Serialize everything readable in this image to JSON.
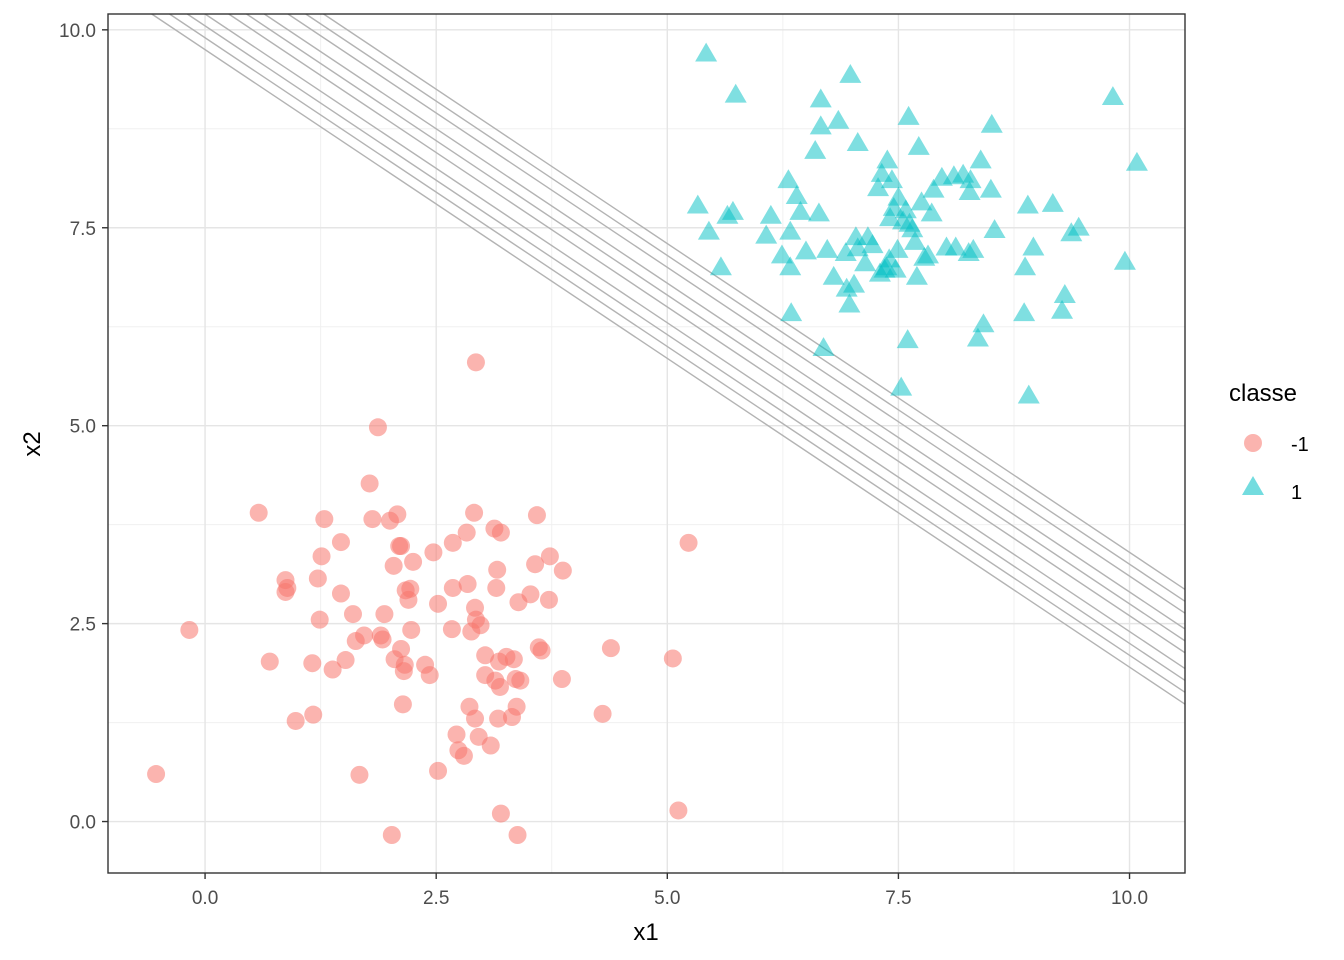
{
  "chart_data": {
    "type": "scatter",
    "xlabel": "x1",
    "ylabel": "x2",
    "xlim": [
      -1.05,
      10.6
    ],
    "ylim": [
      -0.65,
      10.2
    ],
    "x_ticks": [
      0.0,
      2.5,
      5.0,
      7.5,
      10.0
    ],
    "x_tick_labels": [
      "0.0",
      "2.5",
      "5.0",
      "7.5",
      "10.0"
    ],
    "y_ticks": [
      0.0,
      2.5,
      5.0,
      7.5,
      10.0
    ],
    "y_tick_labels": [
      "0.0",
      "2.5",
      "5.0",
      "7.5",
      "10.0"
    ],
    "grid": true,
    "legend": {
      "title": "classe",
      "position": "right",
      "entries": [
        {
          "label": "-1",
          "shape": "circle",
          "color": "#F8766D"
        },
        {
          "label": "1",
          "shape": "triangle",
          "color": "#00BFC4"
        }
      ]
    },
    "lines": {
      "color": "#b3b3b3",
      "slope": -0.78,
      "intercepts": [
        9.75,
        9.9,
        10.05,
        10.2,
        10.4,
        10.55,
        10.7,
        10.9,
        11.05,
        11.2
      ]
    },
    "series": [
      {
        "name": "-1",
        "shape": "circle",
        "color": "#F8766D",
        "points": [
          [
            -0.53,
            0.6
          ],
          [
            -0.17,
            2.42
          ],
          [
            0.58,
            3.9
          ],
          [
            0.7,
            2.02
          ],
          [
            0.87,
            3.05
          ],
          [
            0.87,
            2.9
          ],
          [
            0.89,
            2.95
          ],
          [
            0.98,
            1.27
          ],
          [
            1.16,
            2.0
          ],
          [
            1.17,
            1.35
          ],
          [
            1.22,
            3.07
          ],
          [
            1.24,
            2.55
          ],
          [
            1.26,
            3.35
          ],
          [
            1.29,
            3.82
          ],
          [
            1.38,
            1.92
          ],
          [
            1.47,
            2.88
          ],
          [
            1.47,
            3.53
          ],
          [
            1.52,
            2.04
          ],
          [
            1.6,
            2.62
          ],
          [
            1.63,
            2.28
          ],
          [
            1.67,
            0.59
          ],
          [
            1.72,
            2.35
          ],
          [
            1.78,
            4.27
          ],
          [
            1.81,
            3.82
          ],
          [
            1.87,
            4.98
          ],
          [
            1.9,
            2.35
          ],
          [
            1.92,
            2.3
          ],
          [
            1.94,
            2.62
          ],
          [
            2.0,
            3.8
          ],
          [
            2.02,
            -0.17
          ],
          [
            2.04,
            3.23
          ],
          [
            2.05,
            2.05
          ],
          [
            2.08,
            3.88
          ],
          [
            2.1,
            3.48
          ],
          [
            2.12,
            3.48
          ],
          [
            2.12,
            2.18
          ],
          [
            2.14,
            1.48
          ],
          [
            2.15,
            1.9
          ],
          [
            2.16,
            1.98
          ],
          [
            2.17,
            2.92
          ],
          [
            2.2,
            2.8
          ],
          [
            2.22,
            2.94
          ],
          [
            2.23,
            2.42
          ],
          [
            2.25,
            3.28
          ],
          [
            2.38,
            1.98
          ],
          [
            2.43,
            1.85
          ],
          [
            2.47,
            3.4
          ],
          [
            2.52,
            0.64
          ],
          [
            2.52,
            2.75
          ],
          [
            2.67,
            2.43
          ],
          [
            2.68,
            3.52
          ],
          [
            2.68,
            2.95
          ],
          [
            2.72,
            1.1
          ],
          [
            2.74,
            0.9
          ],
          [
            2.8,
            0.83
          ],
          [
            2.83,
            3.65
          ],
          [
            2.84,
            3.0
          ],
          [
            2.86,
            1.45
          ],
          [
            2.88,
            2.4
          ],
          [
            2.91,
            3.9
          ],
          [
            2.92,
            1.3
          ],
          [
            2.92,
            2.7
          ],
          [
            2.93,
            2.55
          ],
          [
            2.93,
            5.8
          ],
          [
            2.96,
            1.07
          ],
          [
            2.98,
            2.48
          ],
          [
            3.03,
            1.85
          ],
          [
            3.03,
            2.1
          ],
          [
            3.09,
            0.96
          ],
          [
            3.13,
            3.7
          ],
          [
            3.14,
            1.78
          ],
          [
            3.15,
            2.95
          ],
          [
            3.16,
            3.18
          ],
          [
            3.17,
            1.3
          ],
          [
            3.18,
            2.02
          ],
          [
            3.19,
            1.7
          ],
          [
            3.2,
            3.65
          ],
          [
            3.2,
            0.1
          ],
          [
            3.26,
            2.08
          ],
          [
            3.32,
            1.32
          ],
          [
            3.34,
            2.05
          ],
          [
            3.36,
            1.8
          ],
          [
            3.37,
            1.45
          ],
          [
            3.38,
            -0.17
          ],
          [
            3.39,
            2.77
          ],
          [
            3.41,
            1.78
          ],
          [
            3.52,
            2.87
          ],
          [
            3.57,
            3.25
          ],
          [
            3.59,
            3.87
          ],
          [
            3.61,
            2.2
          ],
          [
            3.64,
            2.16
          ],
          [
            3.72,
            2.8
          ],
          [
            3.73,
            3.35
          ],
          [
            3.86,
            1.8
          ],
          [
            3.87,
            3.17
          ],
          [
            4.3,
            1.36
          ],
          [
            4.39,
            2.19
          ],
          [
            5.06,
            2.06
          ],
          [
            5.12,
            0.14
          ],
          [
            5.23,
            3.52
          ]
        ]
      },
      {
        "name": "1",
        "shape": "triangle",
        "color": "#00BFC4",
        "points": [
          [
            5.42,
            9.7
          ],
          [
            5.45,
            7.45
          ],
          [
            5.58,
            7.0
          ],
          [
            5.65,
            7.65
          ],
          [
            5.71,
            7.7
          ],
          [
            5.74,
            9.18
          ],
          [
            5.33,
            7.78
          ],
          [
            6.07,
            7.4
          ],
          [
            6.12,
            7.65
          ],
          [
            6.24,
            7.15
          ],
          [
            6.31,
            8.1
          ],
          [
            6.33,
            7.0
          ],
          [
            6.33,
            7.45
          ],
          [
            6.34,
            6.42
          ],
          [
            6.4,
            7.9
          ],
          [
            6.44,
            7.7
          ],
          [
            6.5,
            7.2
          ],
          [
            6.6,
            8.47
          ],
          [
            6.64,
            7.68
          ],
          [
            6.66,
            8.78
          ],
          [
            6.66,
            9.12
          ],
          [
            6.69,
            5.98
          ],
          [
            6.73,
            7.22
          ],
          [
            6.8,
            6.88
          ],
          [
            6.85,
            8.85
          ],
          [
            6.93,
            7.18
          ],
          [
            6.94,
            6.73
          ],
          [
            6.97,
            6.53
          ],
          [
            6.98,
            9.43
          ],
          [
            7.02,
            6.78
          ],
          [
            7.04,
            7.38
          ],
          [
            7.06,
            8.57
          ],
          [
            7.06,
            7.24
          ],
          [
            7.14,
            7.05
          ],
          [
            7.17,
            7.38
          ],
          [
            7.22,
            7.28
          ],
          [
            7.28,
            8.0
          ],
          [
            7.3,
            6.92
          ],
          [
            7.32,
            8.18
          ],
          [
            7.35,
            6.97
          ],
          [
            7.37,
            7.0
          ],
          [
            7.38,
            8.35
          ],
          [
            7.4,
            7.1
          ],
          [
            7.41,
            7.62
          ],
          [
            7.43,
            8.1
          ],
          [
            7.45,
            7.75
          ],
          [
            7.47,
            6.97
          ],
          [
            7.49,
            7.22
          ],
          [
            7.5,
            7.88
          ],
          [
            7.53,
            5.48
          ],
          [
            7.55,
            7.58
          ],
          [
            7.58,
            7.72
          ],
          [
            7.6,
            6.08
          ],
          [
            7.61,
            8.9
          ],
          [
            7.62,
            7.55
          ],
          [
            7.65,
            7.48
          ],
          [
            7.68,
            7.32
          ],
          [
            7.7,
            6.88
          ],
          [
            7.72,
            8.52
          ],
          [
            7.75,
            7.82
          ],
          [
            7.78,
            7.12
          ],
          [
            7.82,
            7.15
          ],
          [
            7.86,
            7.68
          ],
          [
            7.88,
            7.98
          ],
          [
            7.97,
            8.13
          ],
          [
            8.02,
            7.25
          ],
          [
            8.1,
            8.15
          ],
          [
            8.12,
            7.25
          ],
          [
            8.2,
            8.17
          ],
          [
            8.26,
            7.18
          ],
          [
            8.27,
            7.95
          ],
          [
            8.28,
            8.1
          ],
          [
            8.31,
            7.22
          ],
          [
            8.36,
            6.1
          ],
          [
            8.39,
            8.35
          ],
          [
            8.42,
            6.28
          ],
          [
            8.5,
            7.98
          ],
          [
            8.51,
            8.8
          ],
          [
            8.54,
            7.47
          ],
          [
            8.86,
            6.42
          ],
          [
            8.87,
            7.0
          ],
          [
            8.9,
            7.78
          ],
          [
            8.96,
            7.25
          ],
          [
            8.91,
            5.38
          ],
          [
            9.17,
            7.8
          ],
          [
            9.27,
            6.45
          ],
          [
            9.3,
            6.65
          ],
          [
            9.37,
            7.43
          ],
          [
            9.45,
            7.5
          ],
          [
            9.82,
            9.15
          ],
          [
            9.95,
            7.07
          ],
          [
            10.08,
            8.32
          ]
        ]
      }
    ]
  }
}
